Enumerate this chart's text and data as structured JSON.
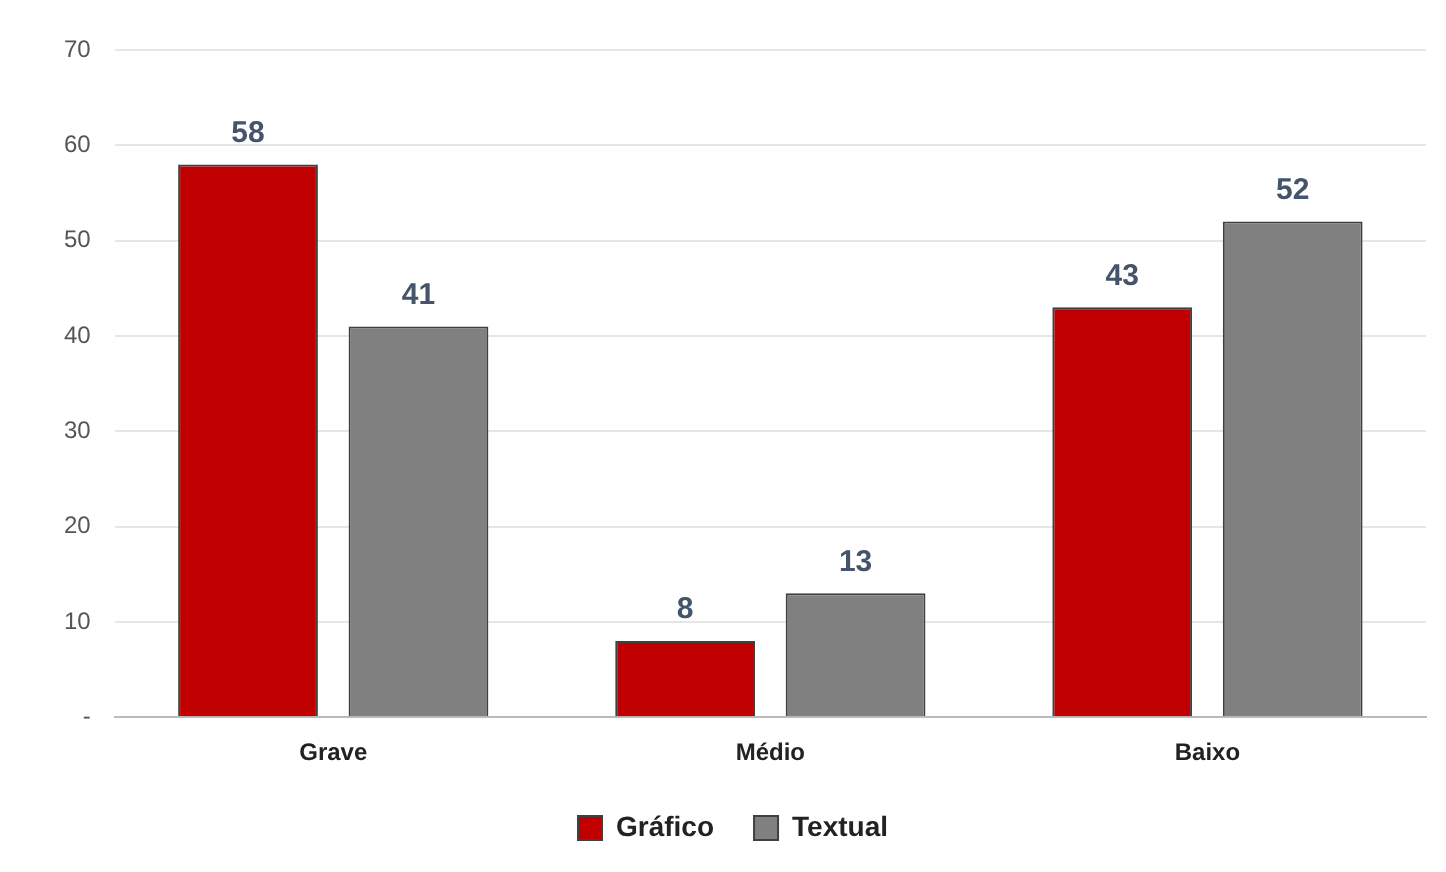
{
  "chart_data": {
    "type": "bar",
    "categories": [
      "Grave",
      "Médio",
      "Baixo"
    ],
    "series": [
      {
        "name": "Gráfico",
        "color": "#c00000",
        "values": [
          58,
          8,
          43
        ]
      },
      {
        "name": "Textual",
        "color": "#808080",
        "values": [
          41,
          13,
          52
        ]
      }
    ],
    "ylim": [
      0,
      70
    ],
    "yticks": [
      {
        "value": 0,
        "label": "-"
      },
      10,
      20,
      30,
      40,
      50,
      60,
      70
    ],
    "grid": "y",
    "legend": "bottom",
    "data_labels": true
  }
}
